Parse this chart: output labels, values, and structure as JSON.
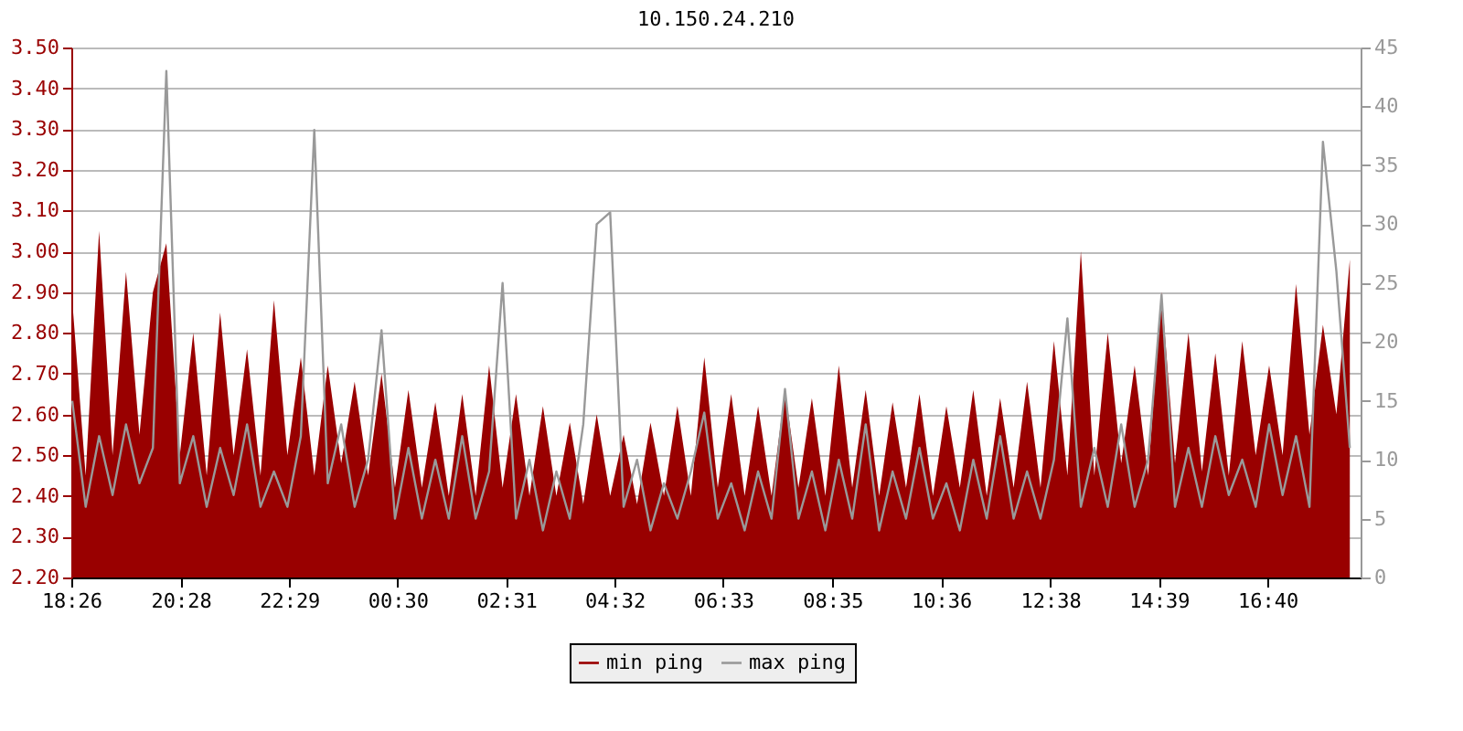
{
  "chart_data": {
    "type": "area",
    "title": "10.150.24.210",
    "x": [
      "--01-01T18:27",
      "--01-01T18:42",
      "--01-01T18:57",
      "--01-01T19:12",
      "--01-01T19:27",
      "--01-01T19:42",
      "--01-01T19:57",
      "--01-01T20:12",
      "--01-01T20:27",
      "--01-01T20:42",
      "--01-01T20:57",
      "--01-01T21:12",
      "--01-01T21:27",
      "--01-01T21:42",
      "--01-01T21:57",
      "--01-01T22:12",
      "--01-01T22:27",
      "--01-01T22:42",
      "--01-01T22:57",
      "--01-01T23:12",
      "--01-01T23:27",
      "--01-01T23:42",
      "--01-01T23:57",
      "--01-02T00:12",
      "--01-02T00:27",
      "--01-02T00:42",
      "--01-02T00:57",
      "--01-02T01:12",
      "--01-02T01:27",
      "--01-02T01:42",
      "--01-02T01:57",
      "--01-02T02:12",
      "--01-02T02:27",
      "--01-02T02:42",
      "--01-02T02:57",
      "--01-02T03:12",
      "--01-02T03:27",
      "--01-02T03:42",
      "--01-02T03:57",
      "--01-02T04:12",
      "--01-02T04:27",
      "--01-02T04:42",
      "--01-02T04:57",
      "--01-02T05:12",
      "--01-02T05:27",
      "--01-02T05:42",
      "--01-02T05:57",
      "--01-02T06:12",
      "--01-02T06:27",
      "--01-02T06:42",
      "--01-02T06:57",
      "--01-02T07:12",
      "--01-02T07:27",
      "--01-02T07:42",
      "--01-02T07:57",
      "--01-02T08:12",
      "--01-02T08:27",
      "--01-02T08:42",
      "--01-02T08:57",
      "--01-02T09:12",
      "--01-02T09:27",
      "--01-02T09:42",
      "--01-02T09:57",
      "--01-02T10:12",
      "--01-02T10:27",
      "--01-02T10:42",
      "--01-02T10:57",
      "--01-02T11:12",
      "--01-02T11:27",
      "--01-02T11:42",
      "--01-02T11:57",
      "--01-02T12:12",
      "--01-02T12:27",
      "--01-02T12:42",
      "--01-02T12:57",
      "--01-02T13:12",
      "--01-02T13:27",
      "--01-02T13:42",
      "--01-02T13:57",
      "--01-02T14:12",
      "--01-02T14:27",
      "--01-02T14:42",
      "--01-02T14:57",
      "--01-02T15:12",
      "--01-02T15:27",
      "--01-02T15:42",
      "--01-02T15:57",
      "--01-02T16:12",
      "--01-02T16:27",
      "--01-02T16:42",
      "--01-02T16:57",
      "--01-02T17:12",
      "--01-02T17:27",
      "--01-02T17:42",
      "--01-02T17:57",
      "--01-02T18:12"
    ],
    "series": [
      {
        "name": "min ping",
        "color": "#990000",
        "values": [
          2.88,
          2.45,
          3.05,
          2.5,
          2.95,
          2.55,
          2.9,
          3.02,
          2.5,
          2.8,
          2.45,
          2.85,
          2.5,
          2.76,
          2.45,
          2.88,
          2.5,
          2.74,
          2.45,
          2.72,
          2.48,
          2.68,
          2.45,
          2.7,
          2.42,
          2.66,
          2.42,
          2.63,
          2.4,
          2.65,
          2.4,
          2.72,
          2.42,
          2.65,
          2.4,
          2.62,
          2.4,
          2.58,
          2.38,
          2.6,
          2.4,
          2.55,
          2.38,
          2.58,
          2.4,
          2.62,
          2.4,
          2.74,
          2.42,
          2.65,
          2.4,
          2.62,
          2.4,
          2.66,
          2.42,
          2.64,
          2.4,
          2.72,
          2.42,
          2.66,
          2.4,
          2.63,
          2.42,
          2.65,
          2.4,
          2.62,
          2.42,
          2.66,
          2.4,
          2.64,
          2.42,
          2.68,
          2.42,
          2.78,
          2.45,
          3.0,
          2.45,
          2.8,
          2.48,
          2.72,
          2.45,
          2.9,
          2.48,
          2.8,
          2.46,
          2.75,
          2.45,
          2.78,
          2.5,
          2.72,
          2.5,
          2.92,
          2.55,
          2.82,
          2.6,
          2.98
        ]
      },
      {
        "name": "max ping",
        "type": "line",
        "axis": "y2",
        "color": "#999999",
        "values": [
          15,
          6,
          12,
          7,
          13,
          8,
          11,
          43,
          8,
          12,
          6,
          11,
          7,
          13,
          6,
          9,
          6,
          12,
          38,
          8,
          13,
          6,
          10,
          21,
          5,
          11,
          5,
          10,
          5,
          12,
          5,
          9,
          25,
          5,
          10,
          4,
          9,
          5,
          13,
          30,
          31,
          6,
          10,
          4,
          8,
          5,
          9,
          14,
          5,
          8,
          4,
          9,
          5,
          16,
          5,
          9,
          4,
          10,
          5,
          13,
          4,
          9,
          5,
          11,
          5,
          8,
          4,
          10,
          5,
          12,
          5,
          9,
          5,
          10,
          22,
          6,
          11,
          6,
          13,
          6,
          10,
          24,
          6,
          11,
          6,
          12,
          7,
          10,
          6,
          13,
          7,
          12,
          6,
          37,
          26,
          11
        ]
      }
    ],
    "xlim": [
      "--01-01T18:26",
      "--01-02T18:24"
    ],
    "xticks": [
      {
        "value": "--01-01T18:26",
        "label": "18:26"
      },
      {
        "value": "--01-01T20:28",
        "label": "20:28"
      },
      {
        "value": "--01-01T22:29",
        "label": "22:29"
      },
      {
        "value": "--01-02T00:30",
        "label": "00:30"
      },
      {
        "value": "--01-02T02:31",
        "label": "02:31"
      },
      {
        "value": "--01-02T04:32",
        "label": "04:32"
      },
      {
        "value": "--01-02T06:33",
        "label": "06:33"
      },
      {
        "value": "--01-02T08:35",
        "label": "08:35"
      },
      {
        "value": "--01-02T10:36",
        "label": "10:36"
      },
      {
        "value": "--01-02T12:38",
        "label": "12:38"
      },
      {
        "value": "--01-02T14:39",
        "label": "14:39"
      },
      {
        "value": "--01-02T16:40",
        "label": "16:40"
      }
    ],
    "ylim": [
      2.2,
      3.5
    ],
    "yticks": [
      {
        "value": 2.2,
        "label": "2.20"
      },
      {
        "value": 2.3,
        "label": "2.30"
      },
      {
        "value": 2.4,
        "label": "2.40"
      },
      {
        "value": 2.5,
        "label": "2.50"
      },
      {
        "value": 2.6,
        "label": "2.60"
      },
      {
        "value": 2.7,
        "label": "2.70"
      },
      {
        "value": 2.8,
        "label": "2.80"
      },
      {
        "value": 2.9,
        "label": "2.90"
      },
      {
        "value": 3.0,
        "label": "3.00"
      },
      {
        "value": 3.1,
        "label": "3.10"
      },
      {
        "value": 3.2,
        "label": "3.20"
      },
      {
        "value": 3.3,
        "label": "3.30"
      },
      {
        "value": 3.4,
        "label": "3.40"
      },
      {
        "value": 3.5,
        "label": "3.50"
      }
    ],
    "y2lim": [
      0,
      45
    ],
    "y2ticks": [
      0,
      5,
      10,
      15,
      20,
      25,
      30,
      35,
      40,
      45
    ],
    "grid": "y",
    "legend": "bottom"
  }
}
